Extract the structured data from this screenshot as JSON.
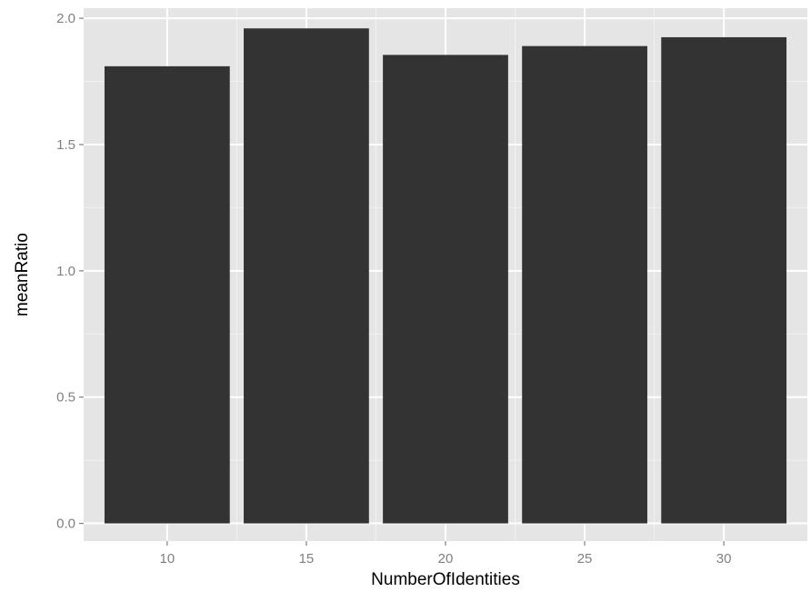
{
  "chart_data": {
    "type": "bar",
    "title": "",
    "xlabel": "NumberOfIdentities",
    "ylabel": "meanRatio",
    "categories": [
      "10",
      "15",
      "20",
      "25",
      "30"
    ],
    "values": [
      1.81,
      1.96,
      1.855,
      1.89,
      1.925
    ],
    "ylim": [
      -0.07,
      2.04
    ],
    "yticks": [
      0.0,
      0.5,
      1.0,
      1.5,
      2.0
    ],
    "ytick_labels": [
      "0.0",
      "0.5",
      "1.0",
      "1.5",
      "2.0"
    ],
    "grid": true,
    "legend": "none",
    "colors": {
      "panel_background": "#e5e5e5",
      "grid_major": "#ffffff",
      "grid_minor": "#f2f2f2",
      "bar_fill": "#333333",
      "tick_label": "#808080",
      "tick_mark": "#808080",
      "axis_title": "#000000"
    }
  }
}
